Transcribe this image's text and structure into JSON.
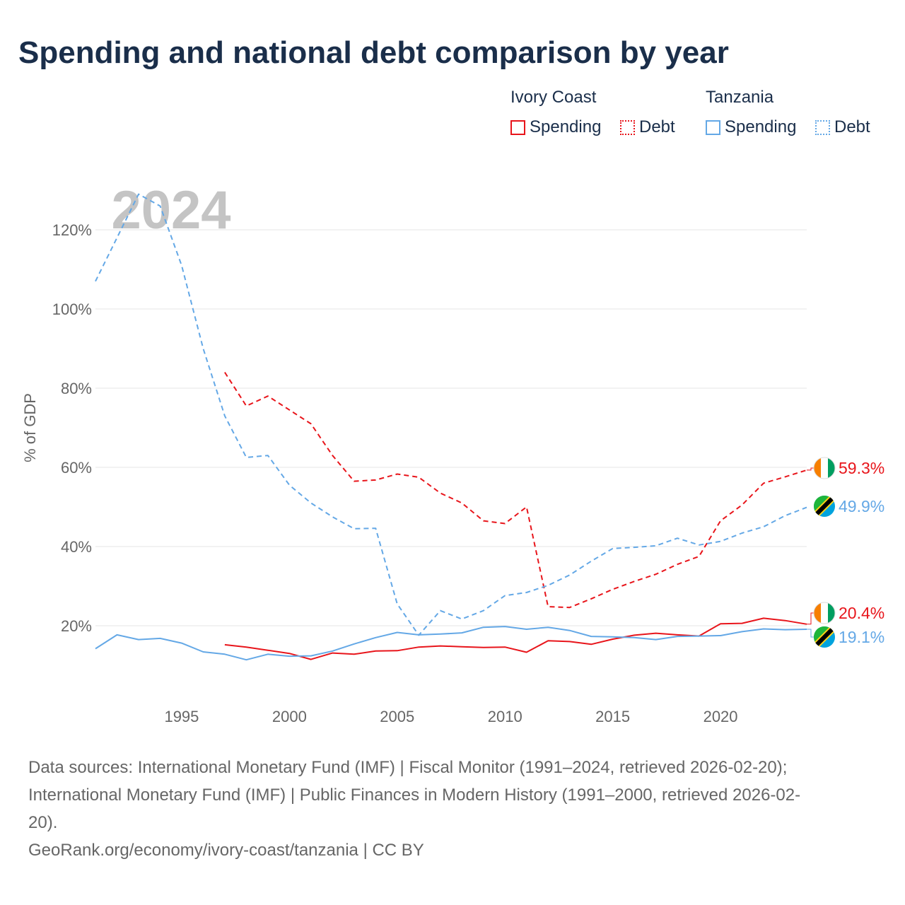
{
  "header": {
    "title": "Spending and national debt comparison by year"
  },
  "legend": {
    "groups": [
      {
        "name": "Ivory Coast",
        "items": [
          {
            "label": "Spending",
            "color": "#e8151b",
            "style": "solid"
          },
          {
            "label": "Debt",
            "color": "#e8151b",
            "style": "dotted"
          }
        ]
      },
      {
        "name": "Tanzania",
        "items": [
          {
            "label": "Spending",
            "color": "#64a8e6",
            "style": "solid"
          },
          {
            "label": "Debt",
            "color": "#64a8e6",
            "style": "dotted"
          }
        ]
      }
    ]
  },
  "chart_data": {
    "type": "line",
    "title": "Spending and national debt comparison by year",
    "year_label": "2024",
    "ylabel": "% of GDP",
    "xlabel": "",
    "xlim": [
      1991,
      2024
    ],
    "ylim": [
      0,
      130
    ],
    "x_ticks": [
      "1995",
      "2000",
      "2005",
      "2010",
      "2015",
      "2020"
    ],
    "y_ticks": [
      "20%",
      "40%",
      "60%",
      "80%",
      "100%",
      "120%"
    ],
    "series": [
      {
        "name": "Ivory Coast Debt",
        "country": "Ivory Coast",
        "metric": "Debt",
        "color": "#e8151b",
        "dash": true,
        "end_label": "59.3%",
        "x": [
          1997,
          1998,
          1999,
          2000,
          2001,
          2002,
          2003,
          2004,
          2005,
          2006,
          2007,
          2008,
          2009,
          2010,
          2011,
          2012,
          2013,
          2014,
          2015,
          2016,
          2017,
          2018,
          2019,
          2020,
          2021,
          2022,
          2023,
          2024
        ],
        "values": [
          84,
          75.5,
          78,
          74.5,
          71,
          63,
          56.5,
          56.8,
          58.3,
          57.5,
          53.5,
          51,
          46.5,
          45.8,
          50,
          24.8,
          24.6,
          26.8,
          29.2,
          31.2,
          33,
          35.5,
          37.5,
          46.5,
          50.5,
          56,
          57.6,
          59.3
        ]
      },
      {
        "name": "Tanzania Debt",
        "country": "Tanzania",
        "metric": "Debt",
        "color": "#64a8e6",
        "dash": true,
        "end_label": "49.9%",
        "x": [
          1991,
          1992,
          1993,
          1994,
          1995,
          1996,
          1997,
          1998,
          1999,
          2000,
          2001,
          2002,
          2003,
          2004,
          2005,
          2006,
          2007,
          2008,
          2009,
          2010,
          2011,
          2012,
          2013,
          2014,
          2015,
          2016,
          2017,
          2018,
          2019,
          2020,
          2021,
          2022,
          2023,
          2024
        ],
        "values": [
          107,
          118,
          129,
          126,
          111,
          90,
          73,
          62.5,
          63,
          55.5,
          51,
          47.5,
          44.5,
          44.6,
          25.5,
          17.6,
          23.8,
          21.7,
          23.8,
          27.6,
          28.4,
          30.2,
          32.8,
          36.3,
          39.5,
          39.8,
          40.2,
          42.1,
          40.4,
          41.3,
          43.4,
          45,
          47.8,
          49.9
        ]
      },
      {
        "name": "Ivory Coast Spending",
        "country": "Ivory Coast",
        "metric": "Spending",
        "color": "#e8151b",
        "dash": false,
        "end_label": "20.4%",
        "x": [
          1997,
          1998,
          1999,
          2000,
          2001,
          2002,
          2003,
          2004,
          2005,
          2006,
          2007,
          2008,
          2009,
          2010,
          2011,
          2012,
          2013,
          2014,
          2015,
          2016,
          2017,
          2018,
          2019,
          2020,
          2021,
          2022,
          2023,
          2024
        ],
        "values": [
          15.2,
          14.6,
          13.8,
          13,
          11.5,
          13.1,
          12.8,
          13.6,
          13.7,
          14.6,
          14.9,
          14.7,
          14.5,
          14.6,
          13.3,
          16.2,
          16,
          15.3,
          16.6,
          17.6,
          18.1,
          17.7,
          17.4,
          20.5,
          20.6,
          21.9,
          21.3,
          20.4
        ]
      },
      {
        "name": "Tanzania Spending",
        "country": "Tanzania",
        "metric": "Spending",
        "color": "#64a8e6",
        "dash": false,
        "end_label": "19.1%",
        "x": [
          1991,
          1992,
          1993,
          1994,
          1995,
          1996,
          1997,
          1998,
          1999,
          2000,
          2001,
          2002,
          2003,
          2004,
          2005,
          2006,
          2007,
          2008,
          2009,
          2010,
          2011,
          2012,
          2013,
          2014,
          2015,
          2016,
          2017,
          2018,
          2019,
          2020,
          2021,
          2022,
          2023,
          2024
        ],
        "values": [
          14.2,
          17.7,
          16.5,
          16.8,
          15.6,
          13.4,
          12.8,
          11.4,
          12.8,
          12.3,
          12.4,
          13.6,
          15.4,
          17,
          18.3,
          17.7,
          17.9,
          18.2,
          19.6,
          19.8,
          19.1,
          19.6,
          18.8,
          17.3,
          17.2,
          17,
          16.5,
          17.3,
          17.4,
          17.5,
          18.5,
          19.2,
          19,
          19.1
        ]
      }
    ]
  },
  "flags": [
    {
      "name": "ivory-coast-flag-icon",
      "colors": [
        "#f77f00",
        "#ffffff",
        "#009e60"
      ]
    },
    {
      "name": "tanzania-flag-icon",
      "colors": [
        "#1eb53a",
        "#00a3dd",
        "#fcd116",
        "#000000"
      ]
    }
  ],
  "footer": {
    "source_line_1": "Data sources: International Monetary Fund (IMF) | Fiscal Monitor (1991–2024, retrieved 2026-02-20);",
    "source_line_2": "International Monetary Fund (IMF) | Public Finances in Modern History (1991–2000, retrieved 2026-02-",
    "source_line_3": "20).",
    "attribution": "GeoRank.org/economy/ivory-coast/tanzania | CC BY"
  }
}
